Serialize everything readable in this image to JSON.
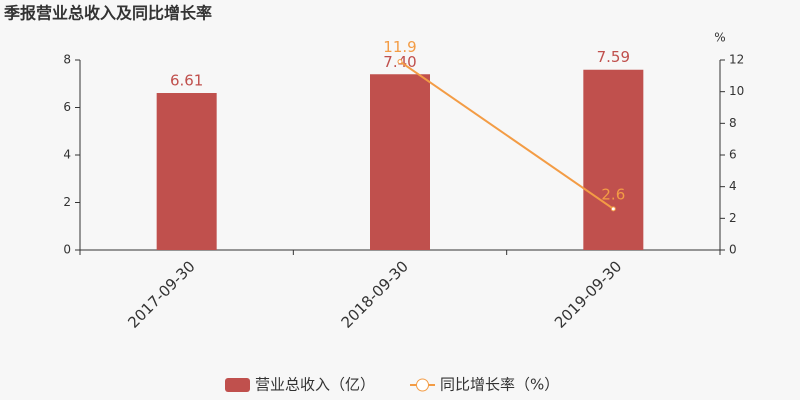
{
  "chart_data": {
    "type": "bar_line",
    "title": "季报营业总收入及同比增长率",
    "y2label": "%",
    "categories": [
      "2017-09-30",
      "2018-09-30",
      "2019-09-30"
    ],
    "series": [
      {
        "name": "营业总收入（亿）",
        "type": "bar",
        "color": "#c0504d",
        "values": [
          6.61,
          7.4,
          7.59
        ],
        "value_labels": [
          "6.61",
          "7.40",
          "7.59"
        ]
      },
      {
        "name": "同比增长率（%）",
        "type": "line",
        "axis": "y2",
        "color": "#f39c45",
        "values": [
          null,
          11.9,
          2.6
        ]
      }
    ],
    "ylim": [
      0,
      8
    ],
    "yticks": [
      0,
      2,
      4,
      6,
      8
    ],
    "y2lim": [
      0,
      12
    ],
    "y2ticks": [
      0,
      2,
      4,
      6,
      8,
      10,
      12
    ]
  }
}
